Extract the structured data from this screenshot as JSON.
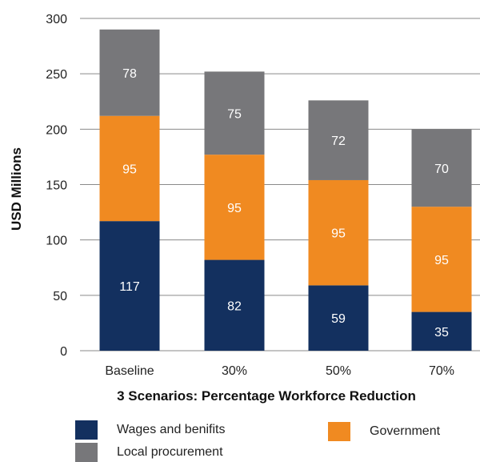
{
  "chart_data": {
    "type": "bar",
    "stacked": true,
    "xlabel": "3 Scenarios: Percentage Workforce Reduction",
    "ylabel": "USD Millions",
    "ylim": [
      0,
      300
    ],
    "yticks": [
      "0",
      "50",
      "100",
      "150",
      "200",
      "250",
      "300"
    ],
    "grid": "horizontal",
    "legend_position": "bottom",
    "categories": [
      "Baseline",
      "30%",
      "50%",
      "70%"
    ],
    "series": [
      {
        "name": "Wages and benifits",
        "values": [
          117,
          82,
          59,
          35
        ],
        "color": "#13305f"
      },
      {
        "name": "Government",
        "values": [
          95,
          95,
          95,
          95
        ],
        "color": "#f08a21"
      },
      {
        "name": "Local procurement",
        "values": [
          78,
          75,
          72,
          70
        ],
        "color": "#77777a"
      }
    ]
  }
}
